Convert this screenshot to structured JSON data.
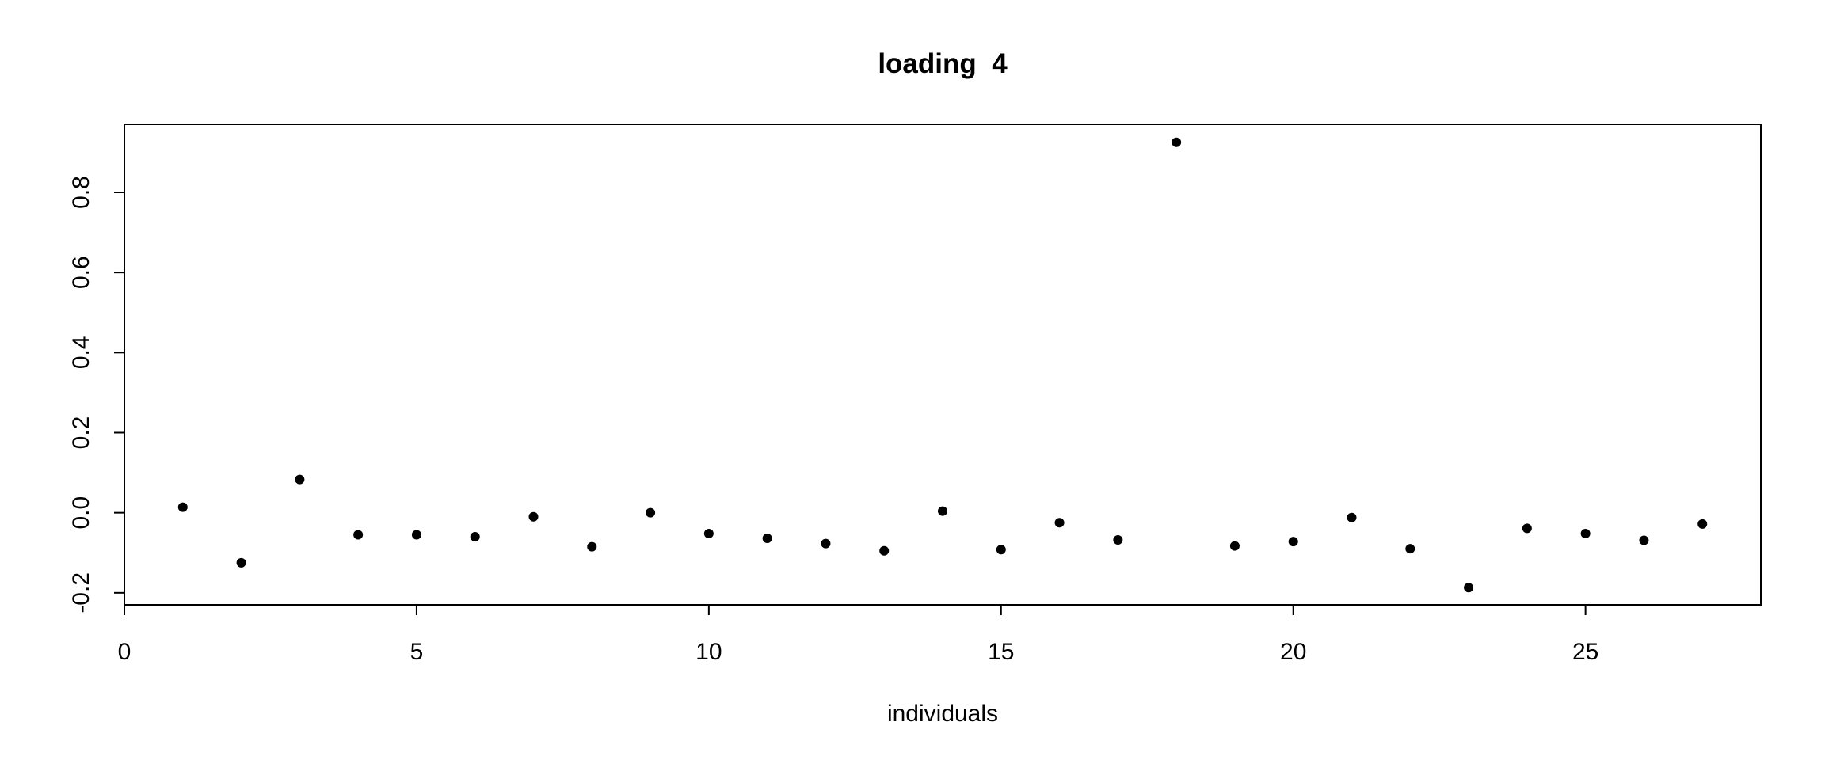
{
  "chart_data": {
    "type": "scatter",
    "title": "loading  4",
    "xlabel": "individuals",
    "ylabel": "",
    "xlim": [
      0,
      28
    ],
    "ylim": [
      -0.23,
      0.97
    ],
    "xticks": [
      0,
      5,
      10,
      15,
      20,
      25
    ],
    "yticks": [
      -0.2,
      0.0,
      0.2,
      0.4,
      0.6,
      0.8
    ],
    "xtick_labels": [
      "0",
      "5",
      "10",
      "15",
      "20",
      "25"
    ],
    "ytick_labels": [
      "-0.2",
      "0.0",
      "0.2",
      "0.4",
      "0.6",
      "0.8"
    ],
    "grid": false,
    "point_color": "#000000",
    "series": [
      {
        "x": [
          1,
          2,
          3,
          4,
          5,
          6,
          7,
          8,
          9,
          10,
          11,
          12,
          13,
          14,
          15,
          16,
          17,
          18,
          19,
          20,
          21,
          22,
          23,
          24,
          25,
          26,
          27
        ],
        "y": [
          0.014,
          -0.125,
          0.083,
          -0.055,
          -0.055,
          -0.06,
          -0.01,
          -0.085,
          0.0,
          -0.052,
          -0.064,
          -0.077,
          -0.095,
          0.004,
          -0.092,
          -0.025,
          -0.068,
          0.925,
          -0.083,
          -0.072,
          -0.012,
          -0.09,
          -0.187,
          -0.039,
          -0.052,
          -0.069,
          -0.028
        ]
      }
    ]
  }
}
